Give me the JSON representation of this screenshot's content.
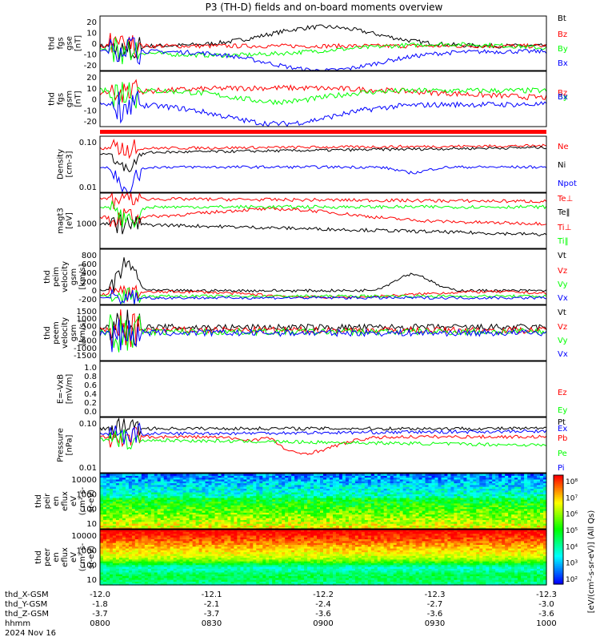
{
  "title": "P3 (TH-D) fields and on-board moments overview",
  "colors": {
    "black": "#000000",
    "red": "#ff0000",
    "green": "#00ff00",
    "blue": "#0000ff",
    "bar": "#ff0000"
  },
  "chart_data": [
    {
      "type": "line",
      "id": "fgs_gse",
      "ylabel_lines": [
        "thd",
        "fgs",
        "gse",
        "[nT]"
      ],
      "ticks": [
        "20",
        "10",
        "0",
        "-10",
        "-20"
      ],
      "series": [
        {
          "name": "Bt",
          "color": "black"
        },
        {
          "name": "Bz",
          "color": "red"
        },
        {
          "name": "By",
          "color": "green"
        },
        {
          "name": "Bx",
          "color": "blue"
        }
      ]
    },
    {
      "type": "line",
      "id": "fgs_gsm",
      "ylabel_lines": [
        "thd",
        "fgs",
        "gsm",
        "[nT]"
      ],
      "ticks": [
        "20",
        "10",
        "0",
        "-10",
        "-20"
      ],
      "series": [
        {
          "name": "Bz",
          "color": "red"
        },
        {
          "name": "By",
          "color": "green"
        },
        {
          "name": "Bx",
          "color": "blue"
        }
      ]
    },
    {
      "type": "line",
      "id": "density",
      "ylabel_lines": [
        "Density",
        "[cm-3]"
      ],
      "scale": "log",
      "ticks": [
        "0.10",
        "0.01"
      ],
      "series": [
        {
          "name": "Ne",
          "color": "red"
        },
        {
          "name": "Ni",
          "color": "black"
        },
        {
          "name": "Npot",
          "color": "blue"
        }
      ]
    },
    {
      "type": "line",
      "id": "temp",
      "ylabel_lines": [
        "magt3",
        "[eV]"
      ],
      "scale": "log",
      "ticks": [
        "1000"
      ],
      "series": [
        {
          "name": "Te⊥",
          "color": "red"
        },
        {
          "name": "Te‖",
          "color": "black"
        },
        {
          "name": "Ti⊥",
          "color": "red"
        },
        {
          "name": "Ti‖",
          "color": "green"
        }
      ]
    },
    {
      "type": "line",
      "id": "peim_vel",
      "ylabel_lines": [
        "thd",
        "peim",
        "velocity",
        "gsm",
        "[km/s]"
      ],
      "ticks": [
        "800",
        "600",
        "400",
        "200",
        "0",
        "-200"
      ],
      "series": [
        {
          "name": "Vt",
          "color": "black"
        },
        {
          "name": "Vz",
          "color": "red"
        },
        {
          "name": "Vy",
          "color": "green"
        },
        {
          "name": "Vx",
          "color": "blue"
        }
      ]
    },
    {
      "type": "line",
      "id": "peem_vel",
      "ylabel_lines": [
        "thd",
        "peem",
        "velocity",
        "gsm",
        "[km/s]"
      ],
      "ticks": [
        "1500",
        "1000",
        "500",
        "0",
        "-500",
        "-1000",
        "-1500"
      ],
      "series": [
        {
          "name": "Vt",
          "color": "black"
        },
        {
          "name": "Vz",
          "color": "red"
        },
        {
          "name": "Vy",
          "color": "green"
        },
        {
          "name": "Vx",
          "color": "blue"
        }
      ]
    },
    {
      "type": "line",
      "id": "efield",
      "ylabel_lines": [
        "E=-VxB",
        "[mV/m]"
      ],
      "ticks": [
        "1.0",
        "0.8",
        "0.6",
        "0.4",
        "0.2",
        "0.0"
      ],
      "series": [
        {
          "name": "Ez",
          "color": "red"
        },
        {
          "name": "Ey",
          "color": "green"
        },
        {
          "name": "Ex",
          "color": "blue"
        }
      ]
    },
    {
      "type": "line",
      "id": "pressure",
      "ylabel_lines": [
        "Pressure",
        "[nPa]"
      ],
      "scale": "log",
      "ticks": [
        "0.10",
        "0.01"
      ],
      "series": [
        {
          "name": "Pt",
          "color": "black"
        },
        {
          "name": "Pb",
          "color": "red"
        },
        {
          "name": "Pe",
          "color": "green"
        },
        {
          "name": "Pi",
          "color": "blue"
        }
      ]
    },
    {
      "type": "heatmap",
      "id": "peir_eflux",
      "ylabel_lines": [
        "thd",
        "peir",
        "en",
        "eflux",
        "eV",
        "(cm²-s-",
        "sr-eV)"
      ],
      "ticks": [
        "10000",
        "1000",
        "100",
        "10"
      ]
    },
    {
      "type": "heatmap",
      "id": "peer_eflux",
      "ylabel_lines": [
        "thd",
        "peer",
        "en",
        "eflux",
        "eV",
        "(cm²-s-",
        "sr-eV)"
      ],
      "ticks": [
        "10000",
        "1000",
        "100",
        "10"
      ]
    }
  ],
  "colorbar": {
    "ticks": [
      "10⁸",
      "10⁷",
      "10⁶",
      "10⁵",
      "10⁴",
      "10³",
      "10²"
    ],
    "label": "[eV/(cm²-s-sr-eV)] (All Qs)"
  },
  "x_axis": {
    "row_labels": [
      "thd_X-GSM",
      "thd_Y-GSM",
      "thd_Z-GSM",
      "hhmm",
      "2024 Nov 16"
    ],
    "columns": [
      [
        "-12.0",
        "-1.8",
        "-3.7",
        "0800"
      ],
      [
        "-12.1",
        "-2.1",
        "-3.7",
        "0830"
      ],
      [
        "-12.2",
        "-2.4",
        "-3.6",
        "0900"
      ],
      [
        "-12.3",
        "-2.7",
        "-3.6",
        "0930"
      ],
      [
        "-12.3",
        "-3.0",
        "-3.6",
        "1000"
      ]
    ]
  }
}
